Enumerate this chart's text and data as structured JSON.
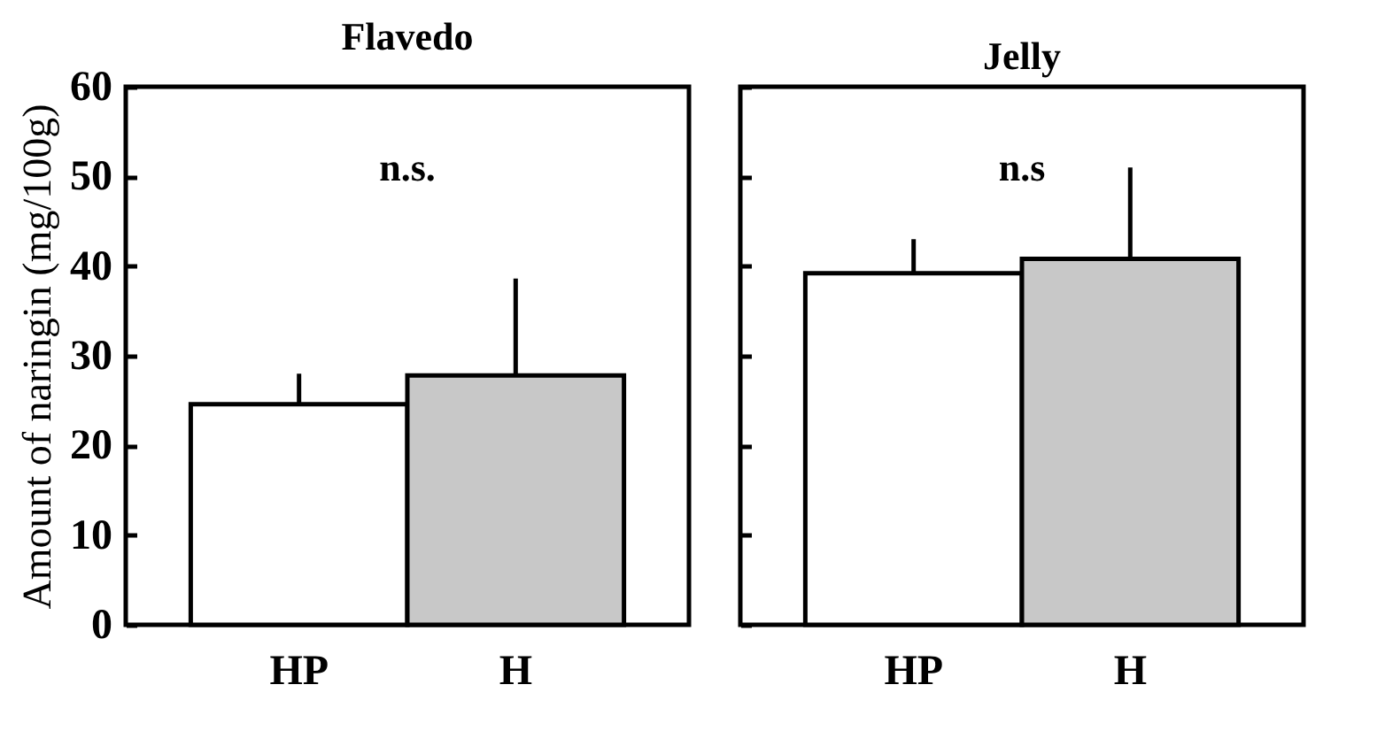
{
  "chart_data": [
    {
      "type": "bar",
      "title": "Flavedo",
      "ylabel": "Amount of naringin (mg/100g)",
      "categories": [
        "HP",
        "H"
      ],
      "values": [
        24.6,
        27.8
      ],
      "colors": [
        "#ffffff",
        "#c8c8c8"
      ],
      "errors": [
        3.4,
        10.8
      ],
      "ylim": [
        0,
        60
      ],
      "yticks": [
        0,
        10,
        20,
        30,
        40,
        50,
        60
      ],
      "annotations": [
        "n.s."
      ]
    },
    {
      "type": "bar",
      "title": "Jelly",
      "categories": [
        "HP",
        "H"
      ],
      "values": [
        39.2,
        40.8
      ],
      "colors": [
        "#ffffff",
        "#c8c8c8"
      ],
      "errors": [
        3.8,
        10.2
      ],
      "ylim": [
        0,
        60
      ],
      "yticks": [
        0,
        10,
        20,
        30,
        40,
        50,
        60
      ],
      "tick_labels": "x",
      "annotations": [
        "n.s"
      ]
    }
  ]
}
